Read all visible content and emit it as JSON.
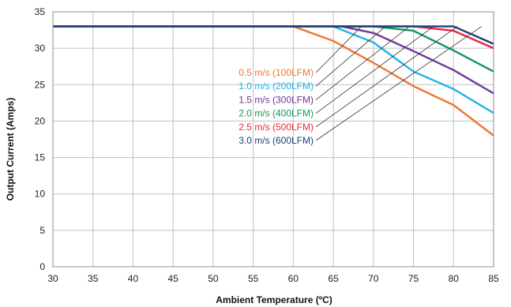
{
  "chart_data": {
    "type": "line",
    "xlabel": "Ambient Temperature (ºC)",
    "ylabel": "Output Current (Amps)",
    "xlim": [
      30,
      85
    ],
    "ylim": [
      0,
      35
    ],
    "x_ticks": [
      30,
      35,
      40,
      45,
      50,
      55,
      60,
      65,
      70,
      75,
      80,
      85
    ],
    "y_ticks": [
      0,
      5,
      10,
      15,
      20,
      25,
      30,
      35
    ],
    "grid": true,
    "legend_placement": "center-right (labels with leader lines)",
    "series": [
      {
        "name": "0.5 m/s (100LFM)",
        "color": "#ee7733",
        "points": [
          [
            30,
            33
          ],
          [
            60,
            33
          ],
          [
            65,
            31
          ],
          [
            70,
            28
          ],
          [
            75,
            24.8
          ],
          [
            80,
            22.2
          ],
          [
            85,
            18
          ]
        ]
      },
      {
        "name": "1.0 m/s (200LFM)",
        "color": "#1eb4e6",
        "points": [
          [
            30,
            33
          ],
          [
            65,
            33
          ],
          [
            70,
            30.8
          ],
          [
            75,
            26.8
          ],
          [
            80,
            24.4
          ],
          [
            85,
            21.1
          ]
        ]
      },
      {
        "name": "1.5 m/s (300LFM)",
        "color": "#70369a",
        "points": [
          [
            30,
            33
          ],
          [
            66,
            33
          ],
          [
            70,
            32.1
          ],
          [
            75,
            29.6
          ],
          [
            80,
            27
          ],
          [
            85,
            23.8
          ]
        ]
      },
      {
        "name": "2.0 m/s (400LFM)",
        "color": "#12985a",
        "points": [
          [
            30,
            33
          ],
          [
            70,
            33
          ],
          [
            75,
            32.4
          ],
          [
            80,
            29.7
          ],
          [
            85,
            26.8
          ]
        ]
      },
      {
        "name": "2.5 m/s (500LFM)",
        "color": "#e6283c",
        "points": [
          [
            30,
            33
          ],
          [
            75,
            33
          ],
          [
            80,
            32.4
          ],
          [
            85,
            30
          ]
        ]
      },
      {
        "name": "3.0 m/s (600LFM)",
        "color": "#1a3f7a",
        "points": [
          [
            30,
            33
          ],
          [
            80,
            33
          ],
          [
            85,
            30.6
          ]
        ]
      }
    ]
  }
}
